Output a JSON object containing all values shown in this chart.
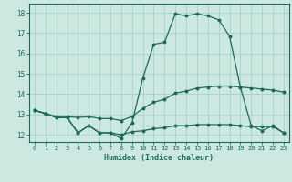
{
  "xlabel": "Humidex (Indice chaleur)",
  "background_color": "#cce8e0",
  "grid_color": "#aad4cc",
  "line_color": "#1a6b5a",
  "xlim": [
    -0.5,
    23.5
  ],
  "ylim": [
    11.65,
    18.45
  ],
  "xticks": [
    0,
    1,
    2,
    3,
    4,
    5,
    6,
    7,
    8,
    9,
    10,
    11,
    12,
    13,
    14,
    15,
    16,
    17,
    18,
    19,
    20,
    21,
    22,
    23
  ],
  "yticks": [
    12,
    13,
    14,
    15,
    16,
    17,
    18
  ],
  "curve_peak": [
    13.2,
    13.05,
    12.85,
    12.85,
    12.1,
    12.45,
    12.1,
    12.1,
    11.82,
    12.6,
    14.8,
    16.45,
    16.55,
    17.95,
    17.85,
    17.95,
    17.85,
    17.65,
    16.85,
    14.35,
    12.45,
    12.2,
    12.45,
    12.1
  ],
  "curve_upper": [
    13.2,
    13.05,
    12.9,
    12.9,
    12.85,
    12.9,
    12.8,
    12.8,
    12.7,
    12.9,
    13.3,
    13.6,
    13.75,
    14.05,
    14.15,
    14.3,
    14.35,
    14.4,
    14.4,
    14.35,
    14.3,
    14.25,
    14.2,
    14.1
  ],
  "curve_lower": [
    13.2,
    13.05,
    12.85,
    12.85,
    12.1,
    12.45,
    12.1,
    12.1,
    12.0,
    12.15,
    12.2,
    12.3,
    12.35,
    12.45,
    12.45,
    12.5,
    12.5,
    12.5,
    12.5,
    12.45,
    12.4,
    12.4,
    12.4,
    12.1
  ]
}
